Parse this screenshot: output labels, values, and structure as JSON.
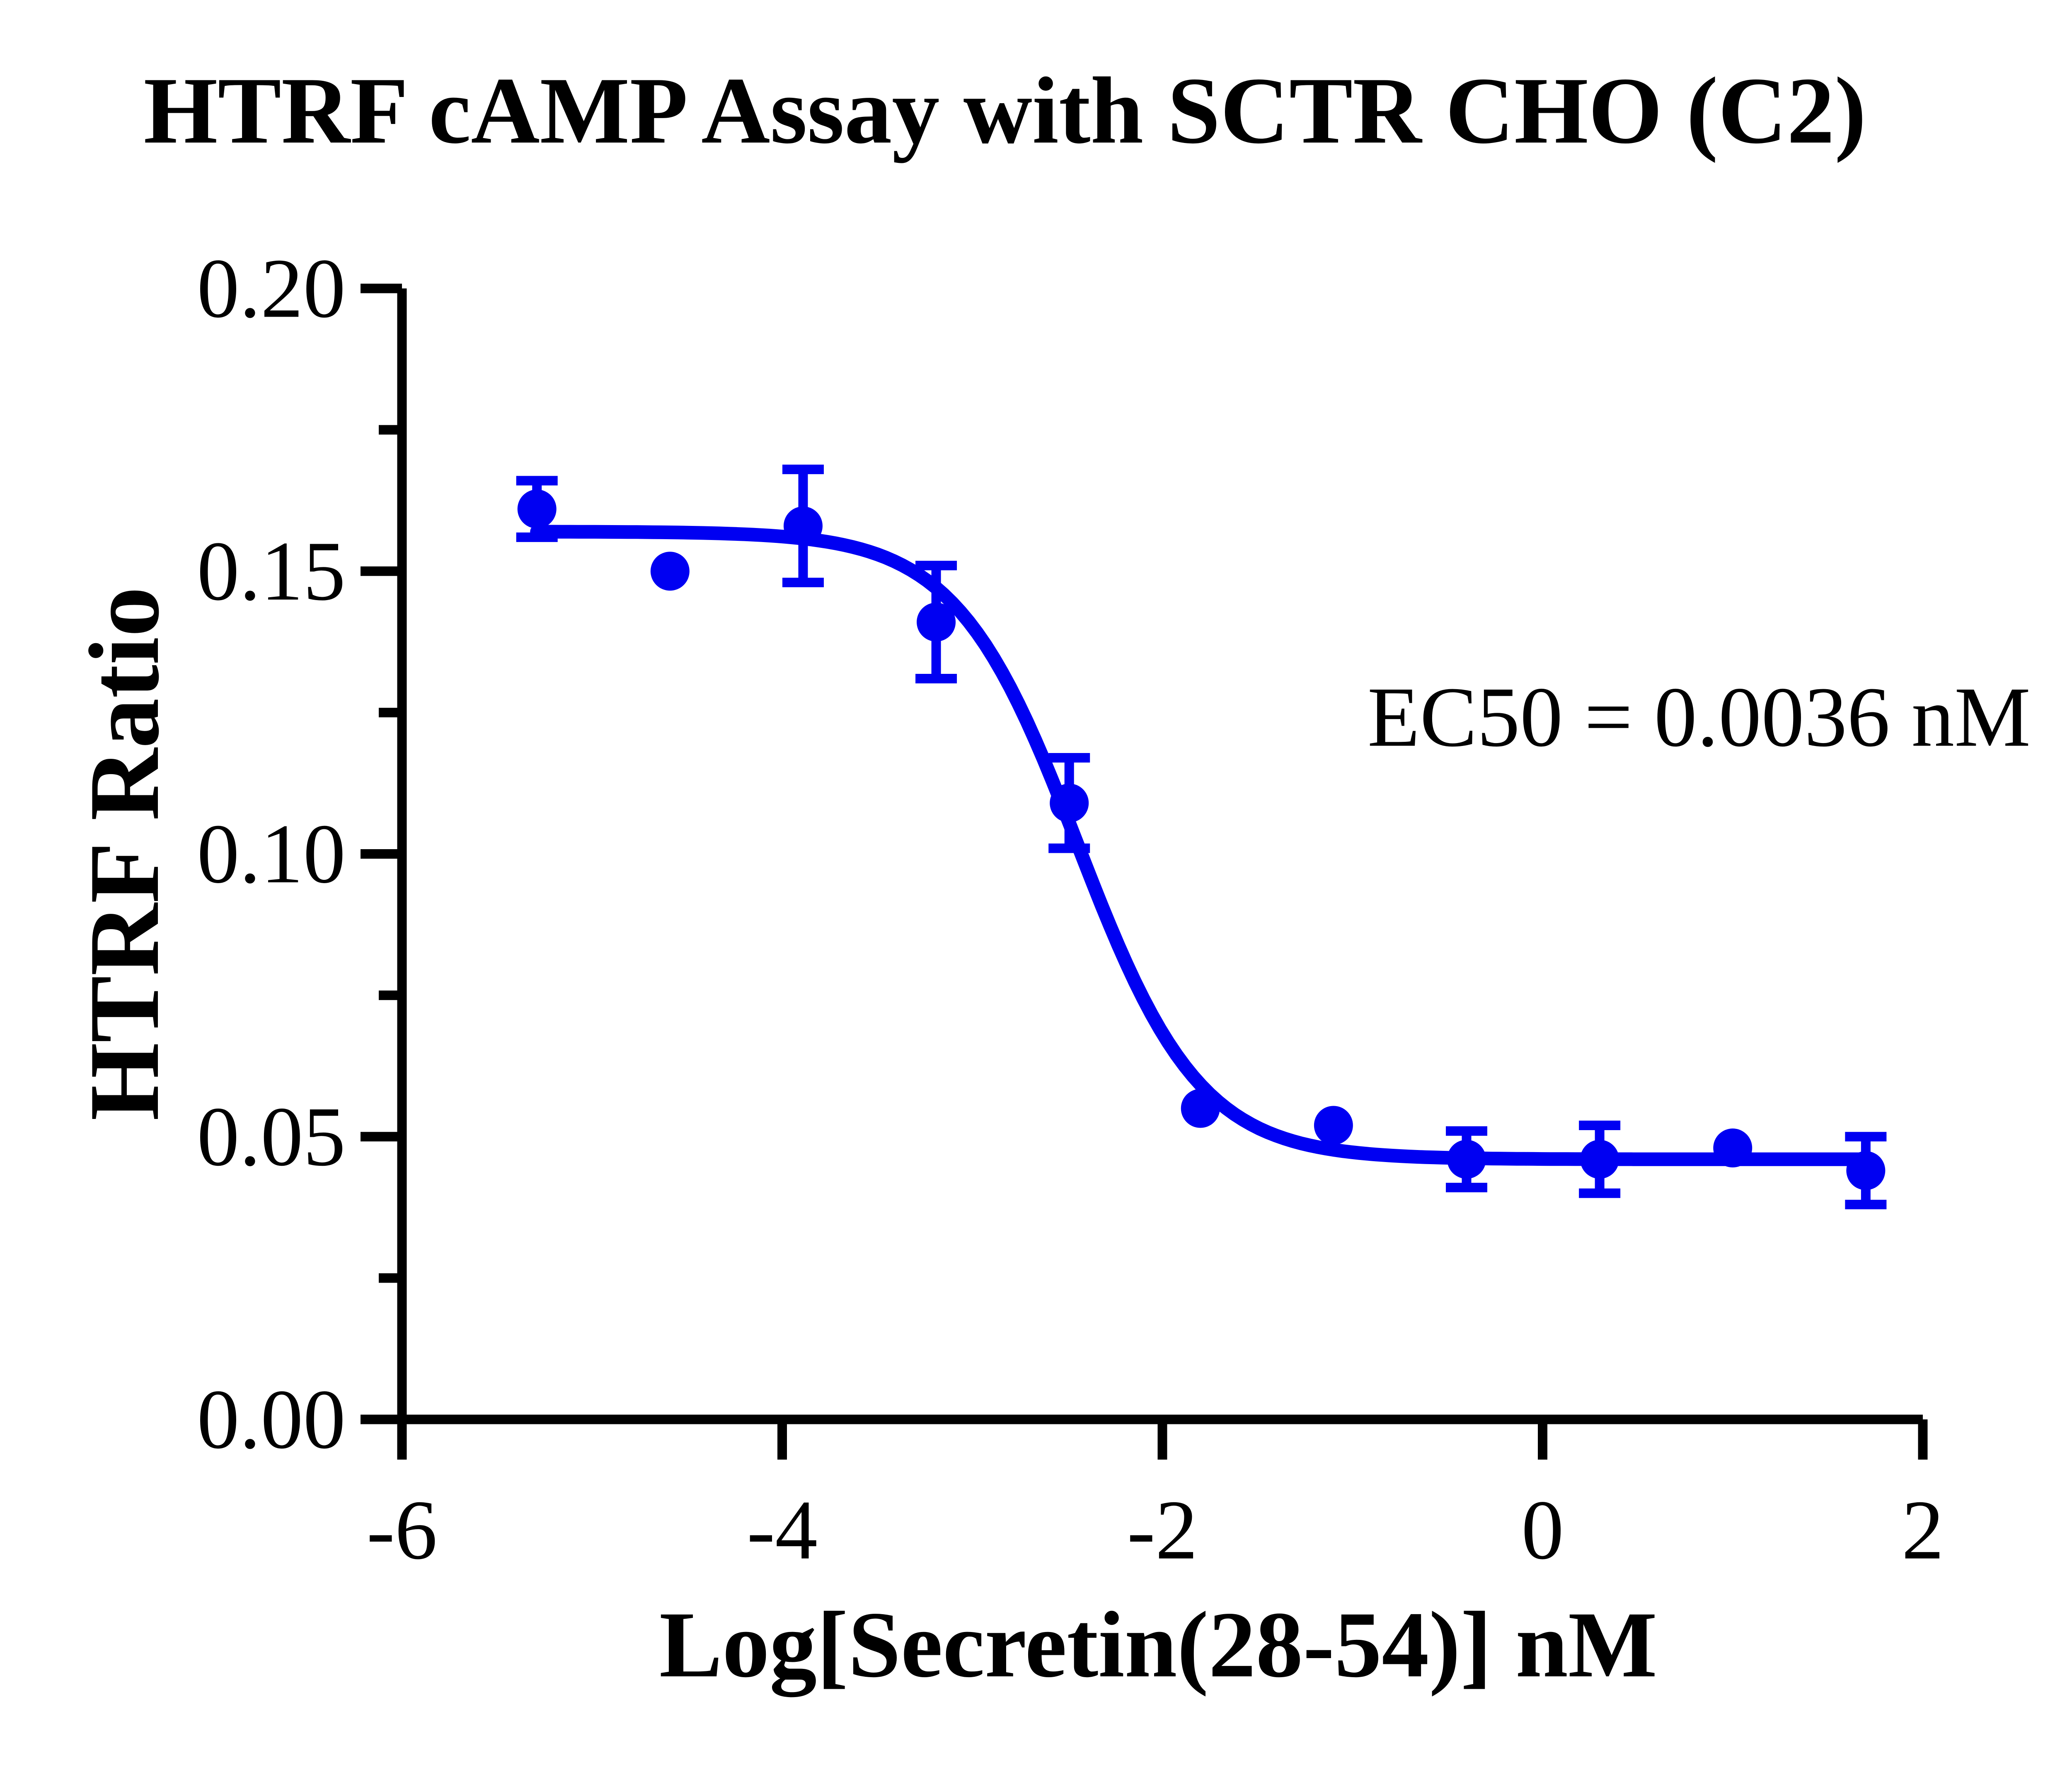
{
  "chart_data": {
    "type": "scatter",
    "title": "HTRF cAMP Assay with SCTR CHO (C2)",
    "xlabel": "Log[Secretin(28-54)] nM",
    "ylabel": "HTRF Ratio",
    "annotation": "EC50 = 0.0036 nM",
    "ec50_nM": 0.0036,
    "xlim": [
      -6,
      2
    ],
    "ylim": [
      0,
      0.2
    ],
    "grid": false,
    "legend": false,
    "accent_color": "#0000F2",
    "axis_color": "#000000",
    "x_ticks": [
      {
        "value": -6,
        "label": "-6"
      },
      {
        "value": -4,
        "label": "-4"
      },
      {
        "value": -2,
        "label": "-2"
      },
      {
        "value": 0,
        "label": "0"
      },
      {
        "value": 2,
        "label": "2"
      }
    ],
    "y_ticks": [
      {
        "value": 0.0,
        "label": "0.00"
      },
      {
        "value": 0.05,
        "label": "0.05"
      },
      {
        "value": 0.1,
        "label": "0.10"
      },
      {
        "value": 0.15,
        "label": "0.15"
      },
      {
        "value": 0.2,
        "label": "0.20"
      }
    ],
    "y_minor_ticks": [
      0.025,
      0.075,
      0.125,
      0.175
    ],
    "series": [
      {
        "name": "Secretin(28-54)",
        "marker": "circle",
        "color": "#0000F2",
        "points": [
          {
            "x": -5.29,
            "y": 0.161,
            "err": 0.005
          },
          {
            "x": -4.59,
            "y": 0.15,
            "err": null
          },
          {
            "x": -3.89,
            "y": 0.158,
            "err": 0.01
          },
          {
            "x": -3.19,
            "y": 0.141,
            "err": 0.01
          },
          {
            "x": -2.49,
            "y": 0.109,
            "err": 0.008
          },
          {
            "x": -1.8,
            "y": 0.055,
            "err": null
          },
          {
            "x": -1.1,
            "y": 0.052,
            "err": null
          },
          {
            "x": -0.4,
            "y": 0.046,
            "err": 0.005
          },
          {
            "x": 0.3,
            "y": 0.046,
            "err": 0.006
          },
          {
            "x": 1.0,
            "y": 0.048,
            "err": null
          },
          {
            "x": 1.7,
            "y": 0.044,
            "err": 0.006
          }
        ]
      }
    ],
    "curve_fit": {
      "model": "4PL",
      "top": 0.157,
      "bottom": 0.046,
      "logEC50": -2.444,
      "hill_slope": -1.35,
      "x_from": -5.29,
      "x_to": 1.7
    }
  }
}
